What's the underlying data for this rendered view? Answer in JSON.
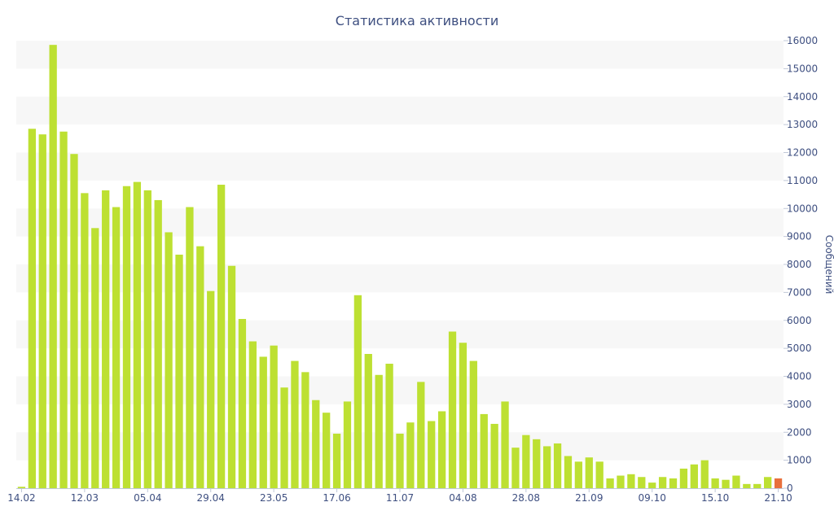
{
  "chart_data": {
    "type": "bar",
    "title": "Статистика активности",
    "xlabel": "",
    "ylabel": "Сообщений",
    "ylim": [
      0,
      16000
    ],
    "y_ticks": [
      0,
      1000,
      2000,
      3000,
      4000,
      5000,
      6000,
      7000,
      8000,
      9000,
      10000,
      11000,
      12000,
      13000,
      14000,
      15000,
      16000
    ],
    "x_tick_labels": [
      {
        "index": 0,
        "label": "14.02"
      },
      {
        "index": 6,
        "label": "12.03"
      },
      {
        "index": 12,
        "label": "05.04"
      },
      {
        "index": 18,
        "label": "29.04"
      },
      {
        "index": 24,
        "label": "23.05"
      },
      {
        "index": 30,
        "label": "17.06"
      },
      {
        "index": 36,
        "label": "11.07"
      },
      {
        "index": 42,
        "label": "04.08"
      },
      {
        "index": 48,
        "label": "28.08"
      },
      {
        "index": 54,
        "label": "21.09"
      },
      {
        "index": 60,
        "label": "09.10"
      },
      {
        "index": 66,
        "label": "15.10"
      },
      {
        "index": 72,
        "label": "21.10"
      }
    ],
    "grid": "horizontal-bands",
    "colors": {
      "bar": "#bde032",
      "highlight": "#e8703c",
      "band": "#f7f7f7",
      "text": "#3e4f80"
    },
    "values": [
      50,
      12850,
      12650,
      15850,
      12750,
      11950,
      10550,
      9300,
      10650,
      10050,
      10800,
      10950,
      10650,
      10300,
      9150,
      8350,
      10050,
      8650,
      7050,
      10850,
      7950,
      6050,
      5250,
      4700,
      5100,
      3600,
      4550,
      4150,
      3150,
      2700,
      1950,
      3100,
      6900,
      4800,
      4050,
      4450,
      1950,
      2350,
      3800,
      2400,
      2750,
      5600,
      5200,
      4550,
      2650,
      2300,
      3100,
      1450,
      1900,
      1750,
      1500,
      1600,
      1150,
      950,
      1100,
      950,
      350,
      450,
      500,
      400,
      200,
      400,
      350,
      700,
      850,
      1000,
      350,
      300,
      450,
      150,
      150,
      400,
      350
    ],
    "highlight_index": 72
  }
}
